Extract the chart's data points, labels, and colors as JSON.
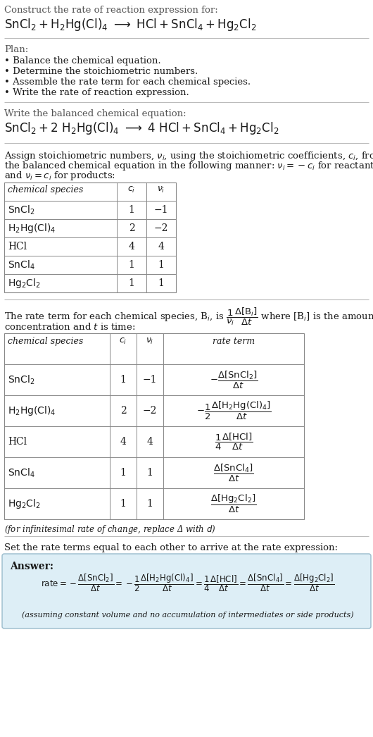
{
  "bg_color": "#ffffff",
  "text_color": "#1a1a1a",
  "gray_text": "#555555",
  "line_color": "#aaaaaa",
  "answer_box_color": "#ddeef6",
  "answer_box_border": "#99bbcc",
  "title_text": "Construct the rate of reaction expression for:",
  "reaction_unbalanced": "$\\mathrm{SnCl_2 + H_2Hg(Cl)_4 \\ \\longrightarrow \\ HCl + SnCl_4 + Hg_2Cl_2}$",
  "plan_title": "Plan:",
  "plan_bullets": [
    "• Balance the chemical equation.",
    "• Determine the stoichiometric numbers.",
    "• Assemble the rate term for each chemical species.",
    "• Write the rate of reaction expression."
  ],
  "balanced_label": "Write the balanced chemical equation:",
  "reaction_balanced": "$\\mathrm{SnCl_2 + 2 \\ H_2Hg(Cl)_4 \\ \\longrightarrow \\ 4 \\ HCl + SnCl_4 + Hg_2Cl_2}$",
  "stoich_label1": "Assign stoichiometric numbers, $\\nu_i$, using the stoichiometric coefficients, $c_i$, from",
  "stoich_label2": "the balanced chemical equation in the following manner: $\\nu_i = -c_i$ for reactants",
  "stoich_label3": "and $\\nu_i = c_i$ for products:",
  "table1_headers": [
    "chemical species",
    "$c_i$",
    "$\\nu_i$"
  ],
  "table1_rows": [
    [
      "$\\mathrm{SnCl_2}$",
      "1",
      "−1"
    ],
    [
      "$\\mathrm{H_2Hg(Cl)_4}$",
      "2",
      "−2"
    ],
    [
      "HCl",
      "4",
      "4"
    ],
    [
      "$\\mathrm{SnCl_4}$",
      "1",
      "1"
    ],
    [
      "$\\mathrm{Hg_2Cl_2}$",
      "1",
      "1"
    ]
  ],
  "rate_label1": "The rate term for each chemical species, B$_i$, is $\\dfrac{1}{\\nu_i}\\dfrac{\\Delta[\\mathrm{B}_i]}{\\Delta t}$ where [B$_i$] is the amount",
  "rate_label2": "concentration and $t$ is time:",
  "table2_headers": [
    "chemical species",
    "$c_i$",
    "$\\nu_i$",
    "rate term"
  ],
  "table2_rows": [
    [
      "$\\mathrm{SnCl_2}$",
      "1",
      "−1",
      "$-\\dfrac{\\Delta[\\mathrm{SnCl_2}]}{\\Delta t}$"
    ],
    [
      "$\\mathrm{H_2Hg(Cl)_4}$",
      "2",
      "−2",
      "$-\\dfrac{1}{2}\\dfrac{\\Delta[\\mathrm{H_2Hg(Cl)_4}]}{\\Delta t}$"
    ],
    [
      "HCl",
      "4",
      "4",
      "$\\dfrac{1}{4}\\dfrac{\\Delta[\\mathrm{HCl}]}{\\Delta t}$"
    ],
    [
      "$\\mathrm{SnCl_4}$",
      "1",
      "1",
      "$\\dfrac{\\Delta[\\mathrm{SnCl_4}]}{\\Delta t}$"
    ],
    [
      "$\\mathrm{Hg_2Cl_2}$",
      "1",
      "1",
      "$\\dfrac{\\Delta[\\mathrm{Hg_2Cl_2}]}{\\Delta t}$"
    ]
  ],
  "infinitesimal_note": "(for infinitesimal rate of change, replace Δ with $d$)",
  "set_equal_label": "Set the rate terms equal to each other to arrive at the rate expression:",
  "answer_label": "Answer:",
  "rate_expression": "$\\mathrm{rate} = -\\dfrac{\\Delta[\\mathrm{SnCl_2}]}{\\Delta t} = -\\dfrac{1}{2}\\dfrac{\\Delta[\\mathrm{H_2Hg(Cl)_4}]}{\\Delta t} = \\dfrac{1}{4}\\dfrac{\\Delta[\\mathrm{HCl}]}{\\Delta t} = \\dfrac{\\Delta[\\mathrm{SnCl_4}]}{\\Delta t} = \\dfrac{\\Delta[\\mathrm{Hg_2Cl_2}]}{\\Delta t}$",
  "assumption_note": "(assuming constant volume and no accumulation of intermediates or side products)"
}
